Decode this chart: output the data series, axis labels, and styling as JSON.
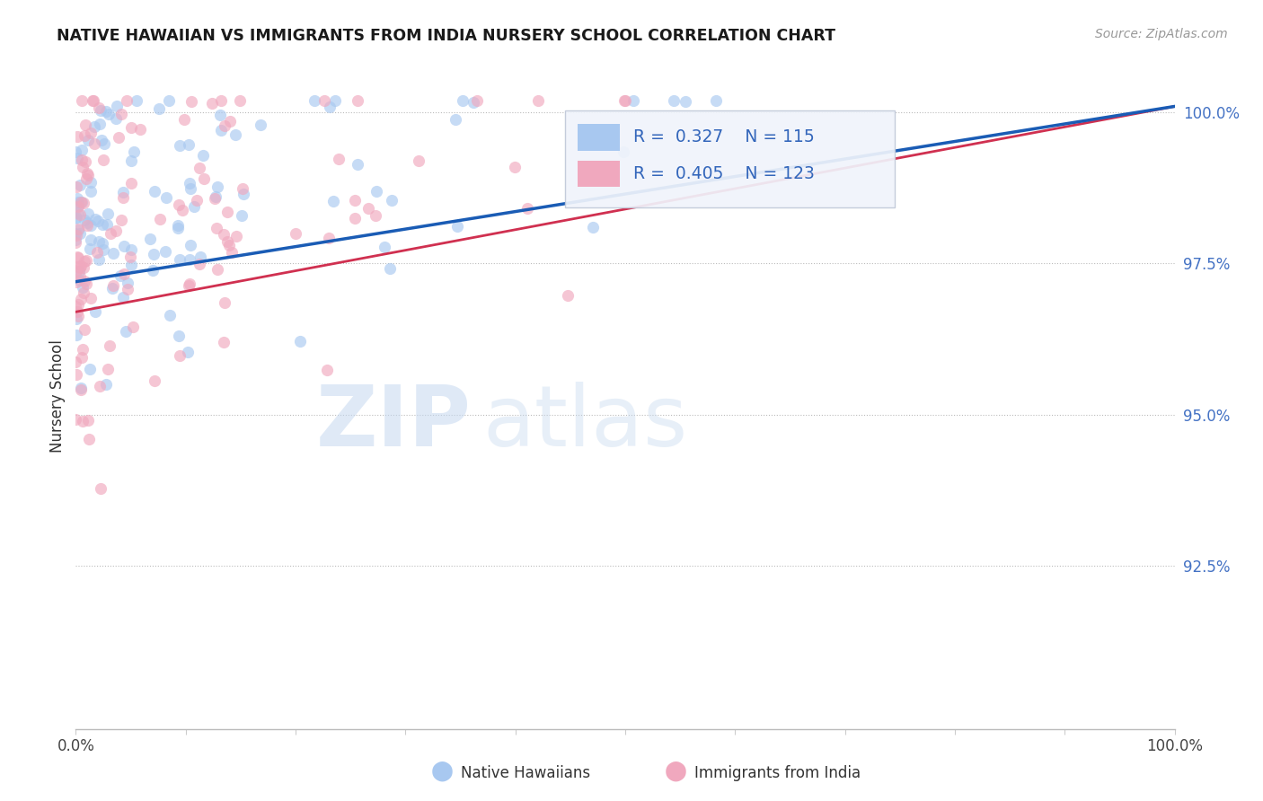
{
  "title": "NATIVE HAWAIIAN VS IMMIGRANTS FROM INDIA NURSERY SCHOOL CORRELATION CHART",
  "source": "Source: ZipAtlas.com",
  "ylabel": "Nursery School",
  "xlim": [
    0,
    1.0
  ],
  "ylim": [
    0.898,
    1.008
  ],
  "yticks": [
    0.925,
    0.95,
    0.975,
    1.0
  ],
  "ytick_labels": [
    "92.5%",
    "95.0%",
    "97.5%",
    "100.0%"
  ],
  "blue_color": "#a8c8f0",
  "pink_color": "#f0a8be",
  "blue_line_color": "#1a5cb5",
  "pink_line_color": "#d03050",
  "R_blue": 0.327,
  "N_blue": 115,
  "R_pink": 0.405,
  "N_pink": 123,
  "blue_line_x0": 0.0,
  "blue_line_y0": 0.972,
  "blue_line_x1": 1.0,
  "blue_line_y1": 1.001,
  "pink_line_x0": 0.0,
  "pink_line_y0": 0.967,
  "pink_line_x1": 1.0,
  "pink_line_y1": 1.001,
  "marker_size": 90,
  "marker_alpha": 0.65,
  "watermark_zip_color": "#c5d8f0",
  "watermark_atlas_color": "#c5d8ee"
}
